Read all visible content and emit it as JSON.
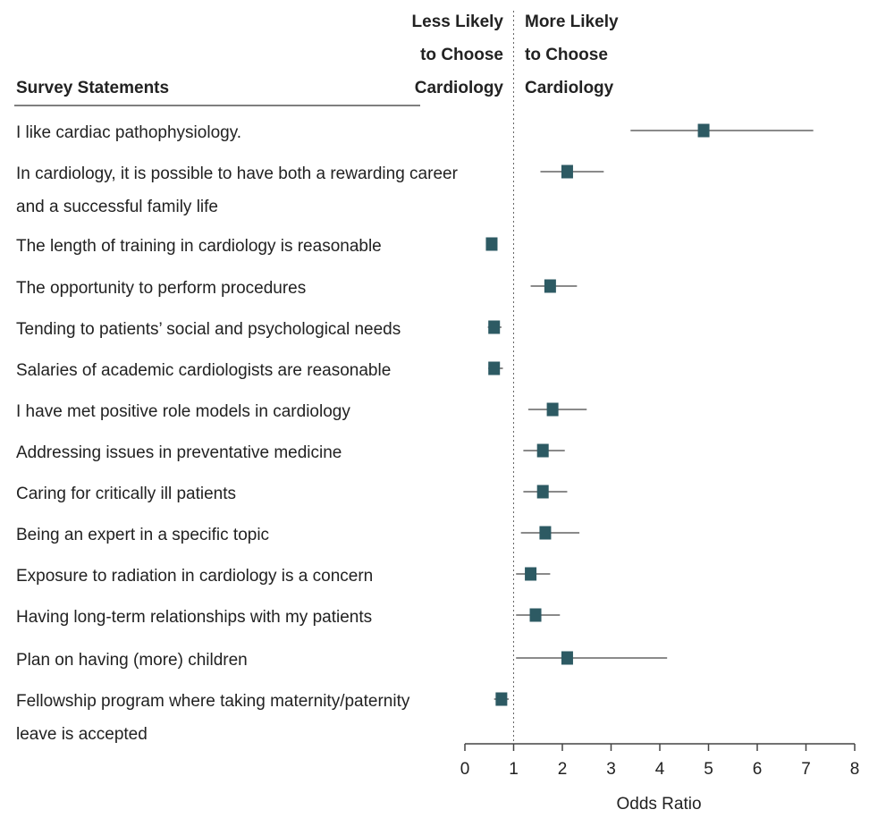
{
  "chart_data": {
    "type": "forest",
    "title": "",
    "statements_header": "Survey Statements",
    "left_direction_label": [
      "Less Likely",
      "to Choose",
      "Cardiology"
    ],
    "right_direction_label": [
      "More Likely",
      "to Choose",
      "Cardiology"
    ],
    "xlabel": "Odds Ratio",
    "xlim": [
      0,
      8
    ],
    "x_ticks": [
      "0",
      "1",
      "2",
      "3",
      "4",
      "5",
      "6",
      "7",
      "8"
    ],
    "reference_line": 1,
    "marker_color": "#2d5a63",
    "ci_color": "#8a8a8a",
    "rows": [
      {
        "label": [
          "I like cardiac pathophysiology."
        ],
        "or": 4.9,
        "ci": [
          3.4,
          7.15
        ]
      },
      {
        "label": [
          "In cardiology, it is possible to have both a rewarding career",
          "and a successful family life"
        ],
        "or": 2.1,
        "ci": [
          1.55,
          2.85
        ]
      },
      {
        "label": [
          "The length of training in cardiology is reasonable"
        ],
        "or": 0.55,
        "ci": [
          0.45,
          0.65
        ]
      },
      {
        "label": [
          "The opportunity to perform procedures"
        ],
        "or": 1.75,
        "ci": [
          1.35,
          2.3
        ]
      },
      {
        "label": [
          "Tending to patients’ social and psychological needs"
        ],
        "or": 0.6,
        "ci": [
          0.47,
          0.75
        ]
      },
      {
        "label": [
          "Salaries of academic cardiologists are reasonable"
        ],
        "or": 0.6,
        "ci": [
          0.48,
          0.78
        ]
      },
      {
        "label": [
          "I have met positive role models in cardiology"
        ],
        "or": 1.8,
        "ci": [
          1.3,
          2.5
        ]
      },
      {
        "label": [
          "Addressing issues in preventative medicine"
        ],
        "or": 1.6,
        "ci": [
          1.2,
          2.05
        ]
      },
      {
        "label": [
          "Caring for critically ill patients"
        ],
        "or": 1.6,
        "ci": [
          1.2,
          2.1
        ]
      },
      {
        "label": [
          "Being an expert in a specific topic"
        ],
        "or": 1.65,
        "ci": [
          1.15,
          2.35
        ]
      },
      {
        "label": [
          "Exposure to radiation in cardiology is a concern"
        ],
        "or": 1.35,
        "ci": [
          1.05,
          1.75
        ]
      },
      {
        "label": [
          "Having long-term relationships with my patients"
        ],
        "or": 1.45,
        "ci": [
          1.05,
          1.95
        ]
      },
      {
        "label": [
          "Plan on having (more) children"
        ],
        "or": 2.1,
        "ci": [
          1.05,
          4.15
        ]
      },
      {
        "label": [
          "Fellowship program where taking maternity/paternity",
          "leave is accepted"
        ],
        "or": 0.75,
        "ci": [
          0.6,
          0.9
        ]
      }
    ]
  }
}
